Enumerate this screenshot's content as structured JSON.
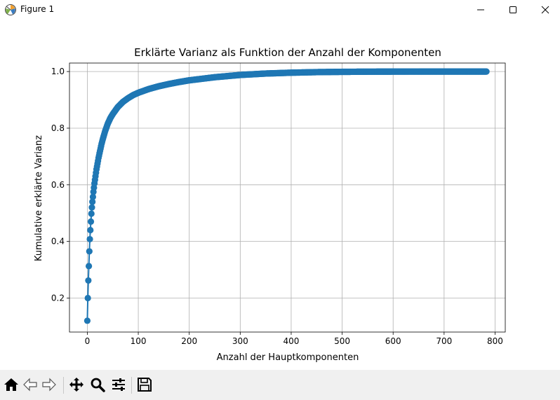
{
  "window": {
    "title": "Figure 1",
    "app_icon": "matplotlib-icon",
    "controls": [
      "minimize-icon",
      "maximize-icon",
      "close-icon"
    ]
  },
  "toolbar": {
    "buttons": [
      {
        "name": "home-button",
        "icon": "home-icon"
      },
      {
        "name": "back-button",
        "icon": "arrow-left-icon"
      },
      {
        "name": "forward-button",
        "icon": "arrow-right-icon"
      },
      {
        "name": "pan-button",
        "icon": "move-icon"
      },
      {
        "name": "zoom-button",
        "icon": "magnifier-icon"
      },
      {
        "name": "configure-subplots-button",
        "icon": "sliders-icon"
      },
      {
        "name": "save-button",
        "icon": "floppy-disk-icon"
      }
    ]
  },
  "chart_data": {
    "type": "line",
    "title": "Erklärte Varianz als Funktion der Anzahl der Komponenten",
    "xlabel": "Anzahl der Hauptkomponenten",
    "ylabel": "Kumulative erklärte Varianz",
    "xlim": [
      -35,
      820
    ],
    "ylim": [
      0.08,
      1.03
    ],
    "xticks": [
      0,
      100,
      200,
      300,
      400,
      500,
      600,
      700,
      800
    ],
    "yticks": [
      0.2,
      0.4,
      0.6,
      0.8,
      1.0
    ],
    "xtick_labels": [
      "0",
      "100",
      "200",
      "300",
      "400",
      "500",
      "600",
      "700",
      "800"
    ],
    "ytick_labels": [
      "0.2",
      "0.4",
      "0.6",
      "0.8",
      "1.0"
    ],
    "grid": true,
    "marker": "circle",
    "color": "#1f77b4",
    "series": [
      {
        "x": [
          0,
          1,
          2,
          3,
          4,
          5,
          6,
          7,
          8,
          9,
          10,
          12,
          14,
          16,
          18,
          20,
          22,
          25,
          28,
          31,
          35,
          40,
          45,
          50,
          60,
          70,
          80,
          90,
          100,
          120,
          140,
          160,
          180,
          200,
          250,
          300,
          350,
          400,
          450,
          500,
          550,
          600,
          650,
          700,
          750,
          783
        ],
        "y": [
          0.12,
          0.2,
          0.262,
          0.313,
          0.365,
          0.408,
          0.44,
          0.47,
          0.498,
          0.52,
          0.54,
          0.575,
          0.605,
          0.63,
          0.655,
          0.675,
          0.695,
          0.72,
          0.745,
          0.765,
          0.79,
          0.815,
          0.835,
          0.85,
          0.875,
          0.893,
          0.906,
          0.917,
          0.925,
          0.938,
          0.948,
          0.956,
          0.963,
          0.969,
          0.98,
          0.988,
          0.993,
          0.996,
          0.998,
          0.999,
          0.9995,
          0.9998,
          0.9999,
          1.0,
          1.0,
          1.0
        ]
      }
    ]
  }
}
